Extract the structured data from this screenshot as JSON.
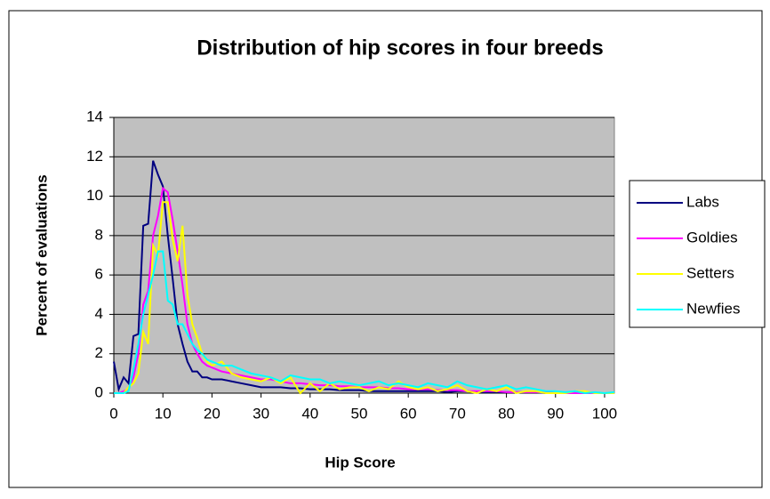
{
  "chart_data": {
    "type": "line",
    "title": "Distribution of hip scores in four breeds",
    "x_label": "Hip Score",
    "y_label": "Percent of evaluations",
    "x": [
      0,
      1,
      2,
      3,
      4,
      5,
      6,
      7,
      8,
      9,
      10,
      11,
      12,
      13,
      14,
      15,
      16,
      17,
      18,
      19,
      20,
      22,
      24,
      26,
      28,
      30,
      32,
      34,
      36,
      38,
      40,
      42,
      44,
      46,
      48,
      50,
      52,
      54,
      56,
      58,
      60,
      62,
      64,
      66,
      68,
      70,
      72,
      74,
      76,
      78,
      80,
      82,
      84,
      86,
      88,
      90,
      92,
      94,
      96,
      98,
      100,
      102
    ],
    "series": [
      {
        "name": "Labs",
        "color": "#000080",
        "values": [
          1.6,
          0.2,
          0.8,
          0.5,
          2.9,
          3.0,
          8.5,
          8.6,
          11.8,
          11.1,
          10.5,
          8.0,
          5.8,
          3.5,
          2.5,
          1.6,
          1.1,
          1.1,
          0.8,
          0.8,
          0.7,
          0.7,
          0.6,
          0.5,
          0.4,
          0.3,
          0.3,
          0.3,
          0.25,
          0.25,
          0.2,
          0.2,
          0.2,
          0.15,
          0.15,
          0.15,
          0.1,
          0.1,
          0.1,
          0.1,
          0.1,
          0.1,
          0.1,
          0.1,
          0.05,
          0.1,
          0.1,
          0.05,
          0.05,
          0.05,
          0.05,
          0.05,
          0.05,
          0.05,
          0,
          0,
          0,
          0,
          0,
          0,
          0,
          0
        ]
      },
      {
        "name": "Goldies",
        "color": "#ff00ff",
        "values": [
          0,
          0,
          0.1,
          0.2,
          0.8,
          2.0,
          4.5,
          5.2,
          8.0,
          9.0,
          10.4,
          10.2,
          8.8,
          7.2,
          5.5,
          3.5,
          2.5,
          2.0,
          1.6,
          1.4,
          1.3,
          1.1,
          1.0,
          0.9,
          0.8,
          0.7,
          0.7,
          0.6,
          0.5,
          0.5,
          0.45,
          0.4,
          0.4,
          0.35,
          0.35,
          0.3,
          0.3,
          0.3,
          0.25,
          0.25,
          0.2,
          0.2,
          0.2,
          0.15,
          0.15,
          0.15,
          0.1,
          0.1,
          0.1,
          0.1,
          0.05,
          0.05,
          0.05,
          0.05,
          0.05,
          0,
          0,
          0,
          0,
          0,
          0,
          0
        ]
      },
      {
        "name": "Setters",
        "color": "#ffff00",
        "values": [
          0,
          0,
          0,
          0.3,
          0.5,
          1.0,
          3.1,
          2.5,
          7.5,
          7.0,
          9.7,
          9.7,
          7.8,
          6.7,
          8.5,
          5.0,
          3.5,
          2.8,
          2.0,
          1.6,
          1.4,
          1.6,
          1.0,
          0.8,
          0.7,
          0.6,
          0.8,
          0.5,
          0.8,
          0.0,
          0.5,
          0.1,
          0.5,
          0.2,
          0.3,
          0.3,
          0.1,
          0.3,
          0.2,
          0.6,
          0.3,
          0.2,
          0.3,
          0.1,
          0.2,
          0.4,
          0.1,
          0,
          0.2,
          0.1,
          0.3,
          0,
          0.1,
          0.1,
          0,
          0,
          0,
          0.1,
          0.1,
          0,
          0,
          0
        ]
      },
      {
        "name": "Newfies",
        "color": "#00ffff",
        "values": [
          0,
          0,
          0,
          0.1,
          1.2,
          2.5,
          4.0,
          5.0,
          6.0,
          7.2,
          7.2,
          4.7,
          4.5,
          3.5,
          3.5,
          3.0,
          2.5,
          2.2,
          2.0,
          1.7,
          1.6,
          1.4,
          1.4,
          1.2,
          1.0,
          0.9,
          0.8,
          0.6,
          0.9,
          0.8,
          0.7,
          0.7,
          0.5,
          0.6,
          0.5,
          0.4,
          0.5,
          0.6,
          0.4,
          0.5,
          0.4,
          0.3,
          0.5,
          0.4,
          0.3,
          0.6,
          0.4,
          0.3,
          0.2,
          0.3,
          0.4,
          0.2,
          0.3,
          0.2,
          0.1,
          0.1,
          0.05,
          0.1,
          0,
          0.05,
          0,
          0.05
        ]
      }
    ],
    "xlim": [
      0,
      102
    ],
    "xticks": [
      0,
      10,
      20,
      30,
      40,
      50,
      60,
      70,
      80,
      90,
      100
    ],
    "ylim": [
      0,
      14
    ],
    "yticks": [
      0,
      2,
      4,
      6,
      8,
      10,
      12,
      14
    ],
    "grid": true,
    "legend": "right",
    "plot_background": "#c0c0c0"
  }
}
